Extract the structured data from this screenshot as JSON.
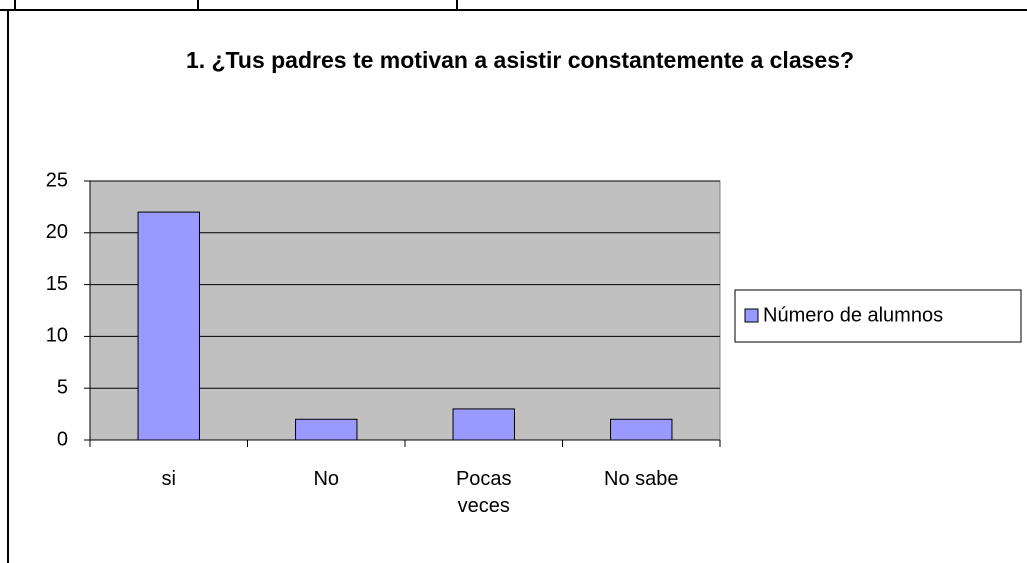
{
  "chart_data": {
    "type": "bar",
    "title": "1. ¿Tus padres te motivan a asistir constantemente a clases?",
    "categories": [
      "si",
      "No",
      "Pocas veces",
      "No sabe"
    ],
    "series": [
      {
        "name": "Número de alumnos",
        "color": "#9999ff",
        "values": [
          22,
          2,
          3,
          2
        ]
      }
    ],
    "ylim": [
      0,
      25
    ],
    "yticks": [
      0,
      5,
      10,
      15,
      20,
      25
    ],
    "grid": true,
    "legend": "right",
    "plot_background": "#c0c0c0"
  }
}
